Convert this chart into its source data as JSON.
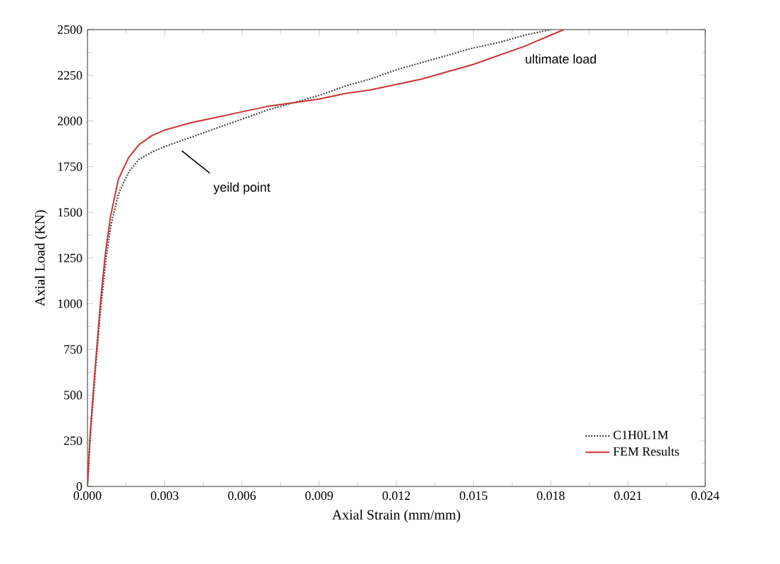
{
  "chart_data": {
    "type": "line",
    "xlabel": "Axial Strain (mm/mm)",
    "ylabel": "Axial Load (KN)",
    "xlim": [
      0,
      0.024
    ],
    "xticks": [
      {
        "value": 0,
        "label": "0.000"
      },
      0.003,
      0.006,
      0.009,
      0.012,
      0.015,
      0.018,
      0.021,
      0.024
    ],
    "ylim": [
      0,
      2500
    ],
    "yticks": [
      0,
      250,
      500,
      750,
      1000,
      1250,
      1500,
      1750,
      2000,
      2250,
      2500
    ],
    "series": [
      {
        "name": "C1H0L1M",
        "color": "#444444",
        "line_style": "dotted",
        "x": [
          0,
          0.0001,
          0.0003,
          0.0005,
          0.0007,
          0.0009,
          0.0012,
          0.0016,
          0.002,
          0.0025,
          0.003,
          0.004,
          0.005,
          0.006,
          0.007,
          0.008,
          0.009,
          0.01,
          0.011,
          0.012,
          0.013,
          0.014,
          0.015,
          0.016,
          0.017,
          0.018
        ],
        "values": [
          0,
          250,
          620,
          950,
          1220,
          1420,
          1600,
          1720,
          1790,
          1830,
          1860,
          1910,
          1960,
          2010,
          2060,
          2100,
          2140,
          2190,
          2230,
          2280,
          2320,
          2360,
          2400,
          2430,
          2470,
          2500
        ]
      },
      {
        "name": "FEM Results",
        "color": "#cc3333",
        "line_style": "solid",
        "x": [
          0,
          0.0001,
          0.0003,
          0.0005,
          0.0007,
          0.0009,
          0.0012,
          0.0016,
          0.002,
          0.0025,
          0.003,
          0.004,
          0.005,
          0.006,
          0.007,
          0.008,
          0.009,
          0.01,
          0.011,
          0.012,
          0.013,
          0.014,
          0.015,
          0.016,
          0.017,
          0.0185
        ],
        "values": [
          0,
          280,
          650,
          1000,
          1280,
          1480,
          1680,
          1800,
          1870,
          1920,
          1950,
          1990,
          2020,
          2050,
          2080,
          2100,
          2120,
          2150,
          2170,
          2200,
          2230,
          2270,
          2310,
          2360,
          2410,
          2500
        ]
      }
    ],
    "legend": "bottom right",
    "grid": false,
    "annotations": [
      {
        "text": "yeild point",
        "x": 0.0035,
        "y": 1860
      },
      {
        "text": "ultimate load",
        "x": 0.0185,
        "y": 2500
      }
    ]
  }
}
